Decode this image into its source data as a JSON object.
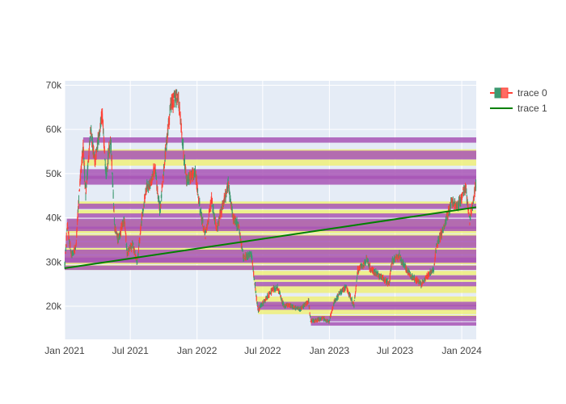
{
  "chart_data": {
    "type": "candlestick",
    "xlabel": "",
    "ylabel": "",
    "x_ticks": [
      "Jan 2021",
      "Jul 2021",
      "Jan 2022",
      "Jul 2022",
      "Jan 2023",
      "Jul 2023",
      "Jan 2024"
    ],
    "y_ticks": [
      "20k",
      "30k",
      "40k",
      "50k",
      "60k",
      "70k"
    ],
    "xlim": [
      "2021-01-01",
      "2024-02-10"
    ],
    "ylim": [
      12500,
      71000
    ],
    "grid": true,
    "legend_position": "top-right",
    "colors": {
      "plot_bg": "#e5ecf6",
      "increasing": "#3d9970",
      "decreasing": "#ff4136",
      "trend": "#008000",
      "zone_high": "#f0f06a",
      "zone_low": "#a855b5"
    },
    "series": [
      {
        "name": "trace 0",
        "kind": "candlestick",
        "approx_close_path": [
          [
            "2021-01-01",
            29000
          ],
          [
            "2021-01-08",
            38000
          ],
          [
            "2021-01-20",
            31500
          ],
          [
            "2021-02-01",
            33500
          ],
          [
            "2021-02-10",
            46000
          ],
          [
            "2021-02-21",
            56000
          ],
          [
            "2021-02-28",
            45500
          ],
          [
            "2021-03-14",
            60000
          ],
          [
            "2021-03-25",
            52500
          ],
          [
            "2021-04-14",
            63500
          ],
          [
            "2021-04-25",
            50000
          ],
          [
            "2021-05-08",
            58000
          ],
          [
            "2021-05-19",
            37500
          ],
          [
            "2021-05-29",
            35000
          ],
          [
            "2021-06-15",
            40000
          ],
          [
            "2021-06-22",
            32000
          ],
          [
            "2021-07-08",
            34000
          ],
          [
            "2021-07-20",
            29800
          ],
          [
            "2021-08-01",
            39500
          ],
          [
            "2021-08-14",
            47000
          ],
          [
            "2021-08-28",
            48000
          ],
          [
            "2021-09-06",
            51500
          ],
          [
            "2021-09-21",
            41500
          ],
          [
            "2021-10-06",
            55000
          ],
          [
            "2021-10-20",
            65500
          ],
          [
            "2021-11-09",
            68000
          ],
          [
            "2021-11-26",
            54000
          ],
          [
            "2021-12-04",
            48500
          ],
          [
            "2021-12-27",
            50500
          ],
          [
            "2022-01-10",
            41500
          ],
          [
            "2022-01-24",
            36000
          ],
          [
            "2022-02-10",
            44000
          ],
          [
            "2022-02-24",
            37500
          ],
          [
            "2022-03-28",
            47500
          ],
          [
            "2022-04-11",
            40000
          ],
          [
            "2022-04-26",
            38000
          ],
          [
            "2022-05-09",
            31000
          ],
          [
            "2022-05-31",
            31800
          ],
          [
            "2022-06-13",
            22500
          ],
          [
            "2022-06-18",
            19000
          ],
          [
            "2022-07-08",
            21500
          ],
          [
            "2022-07-30",
            23800
          ],
          [
            "2022-08-12",
            24200
          ],
          [
            "2022-08-28",
            20000
          ],
          [
            "2022-09-13",
            20200
          ],
          [
            "2022-10-10",
            19200
          ],
          [
            "2022-11-05",
            21200
          ],
          [
            "2022-11-10",
            16500
          ],
          [
            "2022-12-15",
            17200
          ],
          [
            "2022-12-31",
            16550
          ],
          [
            "2023-01-14",
            20900
          ],
          [
            "2023-01-31",
            23100
          ],
          [
            "2023-02-16",
            24300
          ],
          [
            "2023-03-10",
            20300
          ],
          [
            "2023-03-20",
            28000
          ],
          [
            "2023-04-14",
            30400
          ],
          [
            "2023-04-25",
            28300
          ],
          [
            "2023-05-20",
            26900
          ],
          [
            "2023-06-15",
            25100
          ],
          [
            "2023-06-22",
            30000
          ],
          [
            "2023-07-13",
            31400
          ],
          [
            "2023-07-25",
            29200
          ],
          [
            "2023-08-17",
            26600
          ],
          [
            "2023-09-11",
            25100
          ],
          [
            "2023-10-01",
            27000
          ],
          [
            "2023-10-16",
            28500
          ],
          [
            "2023-10-24",
            34000
          ],
          [
            "2023-11-10",
            37200
          ],
          [
            "2023-12-05",
            43800
          ],
          [
            "2023-12-20",
            42300
          ],
          [
            "2024-01-11",
            47000
          ],
          [
            "2024-01-23",
            39500
          ],
          [
            "2024-02-09",
            47500
          ]
        ]
      },
      {
        "name": "trace 1",
        "kind": "line",
        "x": [
          "2021-01-01",
          "2024-02-10"
        ],
        "y": [
          28600,
          42400
        ]
      }
    ],
    "zones_high": [
      [
        53500,
        55500
      ],
      [
        51800,
        53200
      ],
      [
        42500,
        43700
      ],
      [
        38000,
        39500
      ],
      [
        36500,
        37500
      ],
      [
        34800,
        36300
      ],
      [
        33500,
        34500
      ],
      [
        31800,
        33200
      ],
      [
        29500,
        31400
      ],
      [
        28200,
        29300
      ],
      [
        27000,
        28000
      ],
      [
        25500,
        26800
      ],
      [
        23000,
        24800
      ],
      [
        21000,
        22200
      ],
      [
        19800,
        20800
      ],
      [
        18200,
        19300
      ],
      [
        17200,
        18000
      ],
      [
        40800,
        41800
      ],
      [
        37200,
        37800
      ]
    ],
    "zones_low": [
      [
        57000,
        58200
      ],
      [
        53200,
        55200
      ],
      [
        47500,
        49500
      ],
      [
        48800,
        51000
      ],
      [
        42000,
        43200
      ],
      [
        37500,
        39800
      ],
      [
        33200,
        36000
      ],
      [
        29800,
        32800
      ],
      [
        37000,
        38000
      ],
      [
        30000,
        31000
      ],
      [
        28200,
        29200
      ],
      [
        26000,
        27000
      ],
      [
        24500,
        25500
      ],
      [
        20000,
        21000
      ],
      [
        19200,
        20300
      ],
      [
        17000,
        17800
      ],
      [
        16600,
        17000
      ],
      [
        15600,
        16400
      ],
      [
        40000,
        41000
      ]
    ]
  },
  "legend": [
    {
      "label": "trace 0"
    },
    {
      "label": "trace 1"
    }
  ]
}
